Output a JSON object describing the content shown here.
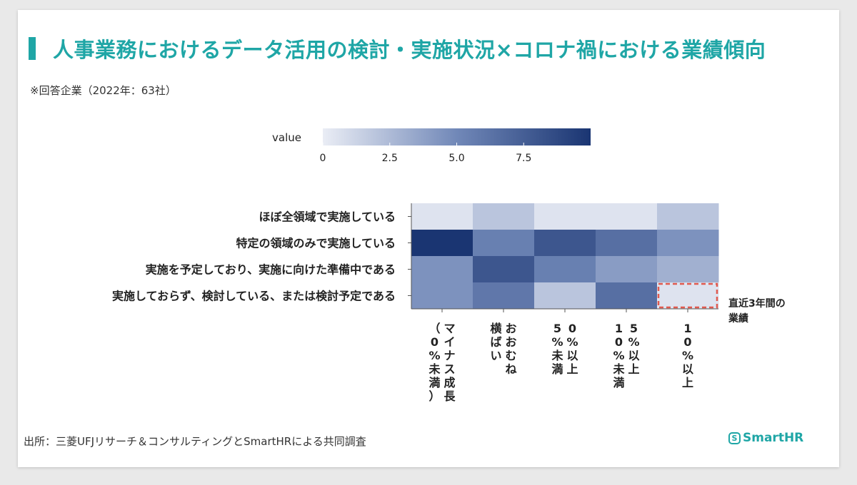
{
  "title": "人事業務におけるデータ活用の検討・実施状況×コロナ禍における業績傾向",
  "subtitle": "※回答企業（2022年：63社）",
  "source": "出所：三菱UFJリサーチ＆コンサルティングとSmartHRによる共同調査",
  "brand": "SmartHR",
  "brand_icon": "S",
  "colors": {
    "accent": "#1fa6a6",
    "scale_low": "#eaedf5",
    "scale_high": "#1a3572",
    "highlight": "#e05a4f"
  },
  "chart_data": {
    "type": "heatmap",
    "legend_title": "value",
    "colorbar_ticks": [
      {
        "value": 0,
        "label": "0"
      },
      {
        "value": 2.5,
        "label": "2.5"
      },
      {
        "value": 5,
        "label": "5.0"
      },
      {
        "value": 7.5,
        "label": "7.5"
      }
    ],
    "vmin": 0,
    "vmax": 10,
    "rows": [
      "ほぼ全領域で実施している",
      "特定の領域のみで実施している",
      "実施を予定しており、実施に向けた準備中である",
      "実施しておらず、検討している、または検討予定である"
    ],
    "columns": [
      [
        "マイナス成長",
        "（0%未満）"
      ],
      [
        "おおむね",
        "横ばい"
      ],
      [
        "0%以上",
        "5%未満"
      ],
      [
        "5%以上",
        "10%未満"
      ],
      [
        "10%以上"
      ]
    ],
    "values": [
      [
        0.5,
        2.0,
        0.5,
        0.5,
        2.0
      ],
      [
        10.0,
        5.5,
        8.0,
        6.5,
        4.5
      ],
      [
        4.5,
        8.0,
        5.5,
        4.0,
        3.0
      ],
      [
        4.5,
        6.0,
        2.0,
        6.5,
        0.5
      ]
    ],
    "highlight_cell": {
      "row": 3,
      "col": 4
    },
    "highlight_label": [
      "直近3年間の",
      "業績"
    ]
  }
}
